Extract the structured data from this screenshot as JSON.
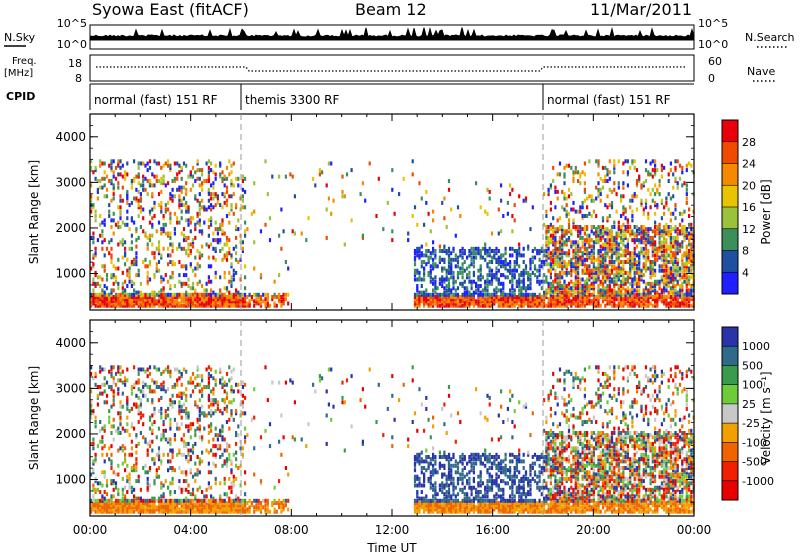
{
  "header": {
    "station": "Syowa East (fitACF)",
    "beam": "Beam 12",
    "date": "11/Mar/2011"
  },
  "strip": {
    "nsky_label": "N.Sky",
    "nsearch_label": "N.Search",
    "noise_ticks": [
      "10^5",
      "10^0"
    ],
    "freq_label_top": "Freq.",
    "freq_label_unit": "[MHz]",
    "freq_ticks": [
      "18",
      "8"
    ],
    "nave_label": "Nave",
    "nave_ticks": [
      "60",
      "0"
    ],
    "cpid_label": "CPID",
    "cpid_segments": [
      {
        "label": "normal (fast) 151 RF",
        "start_hour": 0
      },
      {
        "label": "themis 3300 RF",
        "start_hour": 6
      },
      {
        "label": "normal (fast) 151 RF",
        "start_hour": 18
      }
    ]
  },
  "chart_data": [
    {
      "type": "heatmap",
      "title": "Power",
      "xlabel": "",
      "ylabel": "Slant Range [km]",
      "x_ticks": [
        "00:00",
        "04:00",
        "08:00",
        "12:00",
        "16:00",
        "20:00",
        "00:00"
      ],
      "y_ticks": [
        1000,
        2000,
        3000,
        4000
      ],
      "ylim": [
        200,
        4500
      ],
      "xlim_hours": [
        0,
        24
      ],
      "colorbar": {
        "label": "Power [dB]",
        "ticks": [
          "28",
          "24",
          "20",
          "16",
          "12",
          "8",
          "4"
        ],
        "colors": [
          "#e8000b",
          "#f04a00",
          "#f58a00",
          "#e8c400",
          "#9ac33c",
          "#3b8f5a",
          "#1e4fa0",
          "#1f1fff"
        ]
      }
    },
    {
      "type": "heatmap",
      "title": "Velocity",
      "xlabel": "Time UT",
      "ylabel": "Slant Range [km]",
      "x_ticks": [
        "00:00",
        "04:00",
        "08:00",
        "12:00",
        "16:00",
        "20:00",
        "00:00"
      ],
      "y_ticks": [
        1000,
        2000,
        3000,
        4000
      ],
      "ylim": [
        200,
        4500
      ],
      "xlim_hours": [
        0,
        24
      ],
      "colorbar": {
        "label": "Velocity [m s⁻¹]",
        "ticks": [
          "1000",
          "500",
          "100",
          "25",
          "-25",
          "-100",
          "-500",
          "-1000"
        ],
        "colors": [
          "#2a33a8",
          "#2f6a8a",
          "#3b9a4e",
          "#6ccc3a",
          "#c8c8c8",
          "#f2a000",
          "#f06400",
          "#f02000",
          "#e80000"
        ]
      }
    }
  ]
}
